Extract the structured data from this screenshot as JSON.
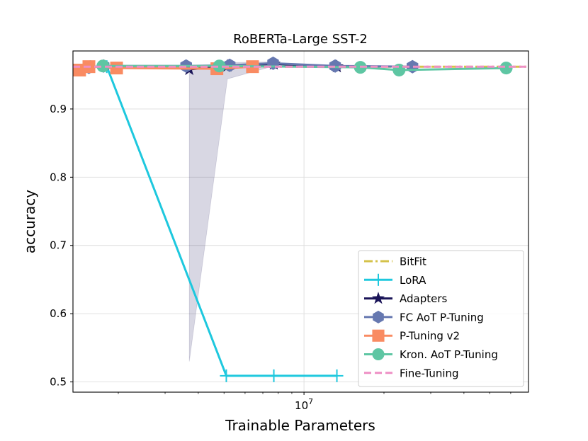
{
  "chart_data": {
    "type": "line",
    "title": "RoBERTa-Large SST-2",
    "xlabel": "Trainable Parameters",
    "ylabel": "accuracy",
    "xscale": "log",
    "xlim": [
      1350000,
      70000000
    ],
    "ylim": [
      0.485,
      0.985
    ],
    "yticks": [
      0.5,
      0.6,
      0.7,
      0.8,
      0.9
    ],
    "ytick_labels": [
      "0.5",
      "0.6",
      "0.7",
      "0.8",
      "0.9"
    ],
    "xtick_major": [
      10000000
    ],
    "xtick_major_labels": [
      "10^7"
    ],
    "xtick_minor": [
      2000000,
      3000000,
      4000000,
      5000000,
      6000000,
      7000000,
      8000000,
      9000000,
      20000000,
      30000000,
      40000000,
      50000000,
      60000000
    ],
    "grid": true,
    "legend_position": "bottom-right",
    "series": [
      {
        "name": "BitFit",
        "color": "#d4c24a",
        "style": "dashdot",
        "marker": "none",
        "x": [
          1350000,
          70000000
        ],
        "y": [
          0.962,
          0.962
        ]
      },
      {
        "name": "LoRA",
        "color": "#1ec8de",
        "style": "solid",
        "marker": "plus",
        "x": [
          1570000,
          1810000,
          5100000,
          7700000,
          13300000
        ],
        "y": [
          0.962,
          0.962,
          0.509,
          0.509,
          0.509
        ]
      },
      {
        "name": "Adapters",
        "color": "#1a1458",
        "style": "solid",
        "marker": "star",
        "x": [
          3700000,
          5150000,
          7700000,
          13300000
        ],
        "y": [
          0.958,
          0.963,
          0.966,
          0.962
        ]
      },
      {
        "name": "FC AoT P-Tuning",
        "color": "#6678b0",
        "style": "solid",
        "marker": "hexagon",
        "x": [
          1550000,
          1760000,
          3600000,
          5250000,
          7650000,
          13100000,
          25600000
        ],
        "y": [
          0.961,
          0.963,
          0.963,
          0.964,
          0.967,
          0.963,
          0.962
        ]
      },
      {
        "name": "P-Tuning v2",
        "color": "#f98b62",
        "style": "solid",
        "marker": "square",
        "x": [
          1430000,
          1550000,
          1970000,
          4700000,
          6400000
        ],
        "y": [
          0.957,
          0.962,
          0.96,
          0.959,
          0.962
        ]
      },
      {
        "name": "Kron. AoT P-Tuning",
        "color": "#5ec6a3",
        "style": "solid",
        "marker": "circle",
        "x": [
          1750000,
          4800000,
          16300000,
          22800000,
          57700000
        ],
        "y": [
          0.963,
          0.963,
          0.961,
          0.957,
          0.96
        ]
      },
      {
        "name": "Fine-Tuning",
        "color": "#ee8fc5",
        "style": "dashed",
        "marker": "none",
        "x": [
          1350000,
          70000000
        ],
        "y": [
          0.962,
          0.962
        ]
      }
    ],
    "bands": [
      {
        "x": [
          3700000,
          3700000,
          5150000,
          7700000,
          7700000,
          5150000
        ],
        "y": [
          0.53,
          0.96,
          0.968,
          0.969,
          0.963,
          0.944
        ]
      }
    ]
  }
}
